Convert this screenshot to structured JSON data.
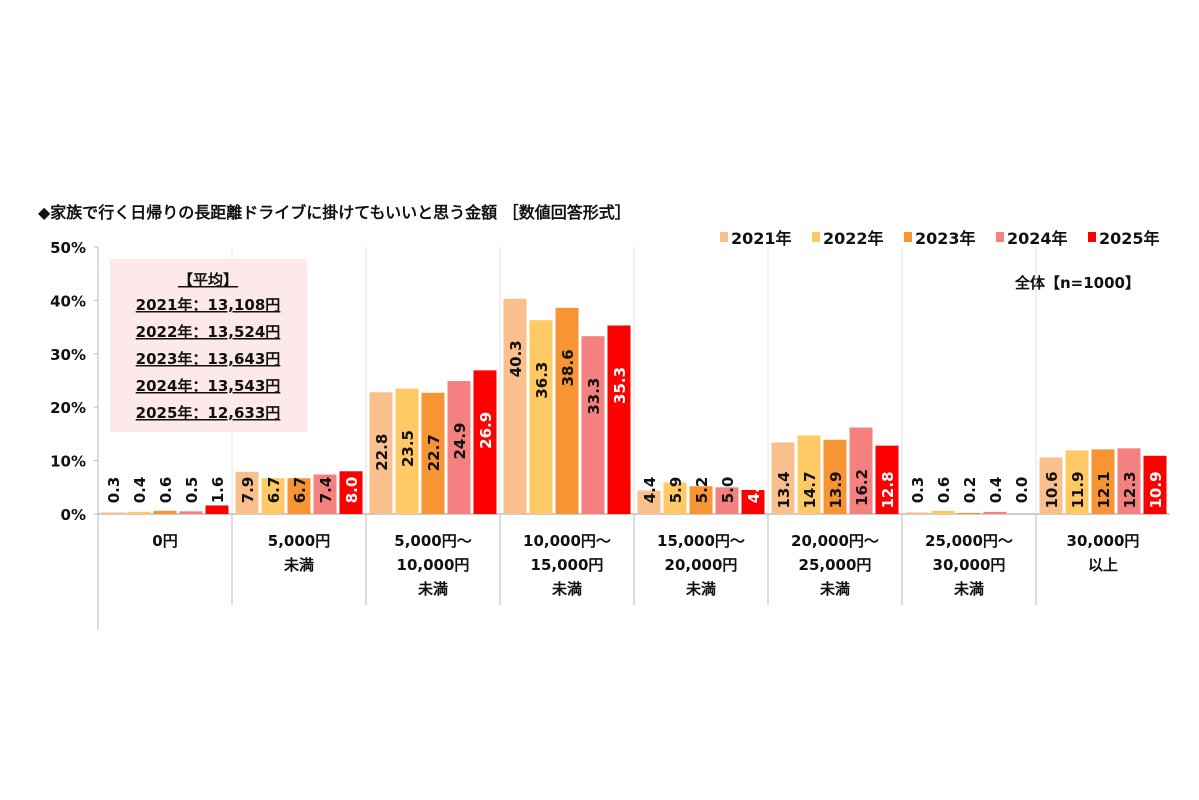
{
  "chart_data": {
    "type": "bar",
    "title": "◆家族で行く日帰りの長距離ドライブに掛けてもいいと思う金額 ［数値回答形式］",
    "note": "全体【n=1000】",
    "ylim": [
      0,
      50
    ],
    "yticks": [
      "0%",
      "10%",
      "20%",
      "30%",
      "40%",
      "50%"
    ],
    "grid": false,
    "legend_position": "top-right",
    "categories": [
      [
        "0円"
      ],
      [
        "5,000円",
        "未満"
      ],
      [
        "5,000円～",
        "10,000円",
        "未満"
      ],
      [
        "10,000円～",
        "15,000円",
        "未満"
      ],
      [
        "15,000円～",
        "20,000円",
        "未満"
      ],
      [
        "20,000円～",
        "25,000円",
        "未満"
      ],
      [
        "25,000円～",
        "30,000円",
        "未満"
      ],
      [
        "30,000円",
        "以上"
      ]
    ],
    "series": [
      {
        "name": "2021年",
        "color": "#F9C08E",
        "values": [
          0.3,
          7.9,
          22.8,
          40.3,
          4.4,
          13.4,
          0.3,
          10.6
        ]
      },
      {
        "name": "2022年",
        "color": "#FFC965",
        "values": [
          0.4,
          6.7,
          23.5,
          36.3,
          5.9,
          14.7,
          0.6,
          11.9
        ]
      },
      {
        "name": "2023年",
        "color": "#F79433",
        "values": [
          0.6,
          6.7,
          22.7,
          38.6,
          5.2,
          13.9,
          0.2,
          12.1
        ]
      },
      {
        "name": "2024年",
        "color": "#F58080",
        "values": [
          0.5,
          7.4,
          24.9,
          33.3,
          5.0,
          16.2,
          0.4,
          12.3
        ]
      },
      {
        "name": "2025年",
        "color": "#FF0000",
        "values": [
          1.6,
          8.0,
          26.9,
          35.3,
          4.5,
          12.8,
          0.0,
          10.9
        ]
      }
    ],
    "average_box": {
      "heading": "【平均】",
      "lines": [
        "2021年：13,108円",
        "2022年：13,524円",
        "2023年：13,643円",
        "2024年：13,543円",
        "2025年：12,633円"
      ],
      "background": "#FDE9E9"
    }
  }
}
